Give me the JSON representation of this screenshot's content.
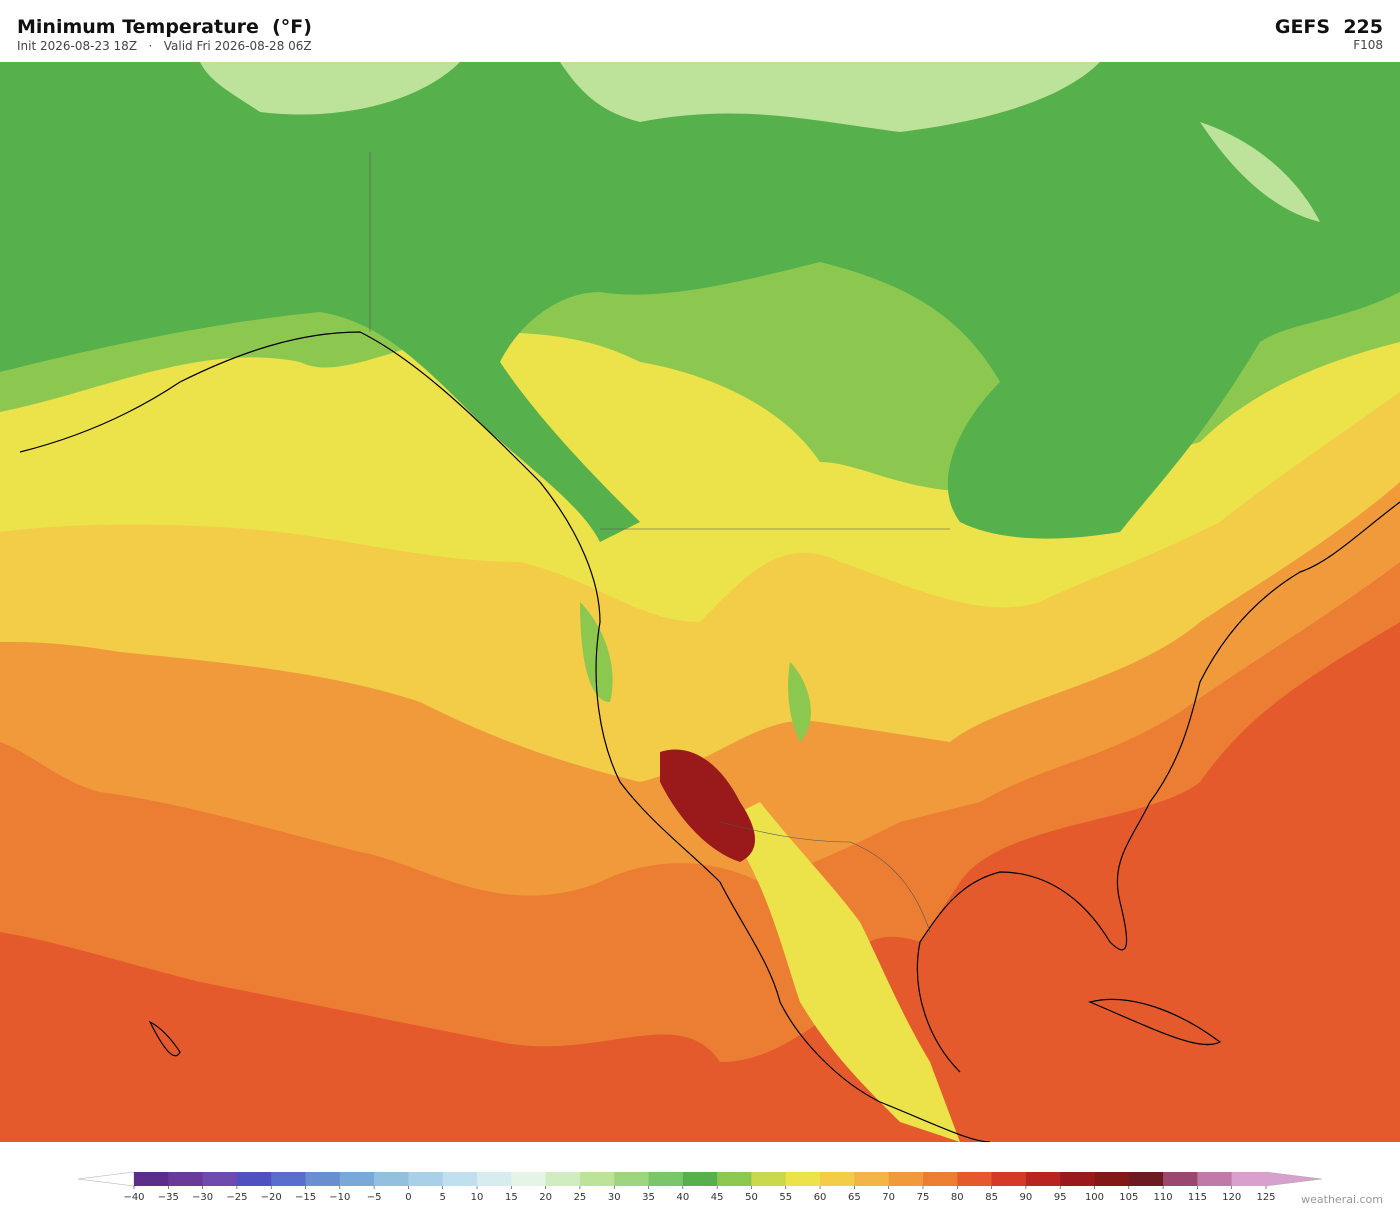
{
  "header": {
    "title": "Minimum Temperature  (°F)",
    "subtitle": "Init 2026-08-23 18Z   ·   Valid Fri 2026-08-28 06Z",
    "model": "GEFS  225",
    "step": "F108"
  },
  "colorbar": {
    "ticks": [
      "−40",
      "−35",
      "−30",
      "−25",
      "−20",
      "−15",
      "−10",
      "−5",
      "0",
      "5",
      "10",
      "15",
      "20",
      "25",
      "30",
      "35",
      "40",
      "45",
      "50",
      "55",
      "60",
      "65",
      "70",
      "75",
      "80",
      "85",
      "90",
      "95",
      "100",
      "105",
      "110",
      "115",
      "120",
      "125"
    ],
    "colors": [
      "#5a2d8a",
      "#6a3a9a",
      "#6d4aad",
      "#5050c0",
      "#5a6ccc",
      "#6a8fd0",
      "#7aa8d8",
      "#94c0e0",
      "#a8d0e8",
      "#c0e0ee",
      "#d8ecf0",
      "#e6f4e8",
      "#d0ecc0",
      "#bde39a",
      "#9ed480",
      "#7cc66a",
      "#56b04c",
      "#8cc850",
      "#c8d84a",
      "#ece24a",
      "#f3cc48",
      "#f2b444",
      "#f09a3c",
      "#ec7e34",
      "#e45a2c",
      "#d43a28",
      "#b82420",
      "#9a1a1c",
      "#821818",
      "#6e1a22",
      "#9a4870",
      "#c07aa8",
      "#d8a0cc"
    ],
    "under_color": "#ffffff",
    "over_color": "#d8a0cc"
  },
  "footer": {
    "credit": "weatherai.com"
  }
}
